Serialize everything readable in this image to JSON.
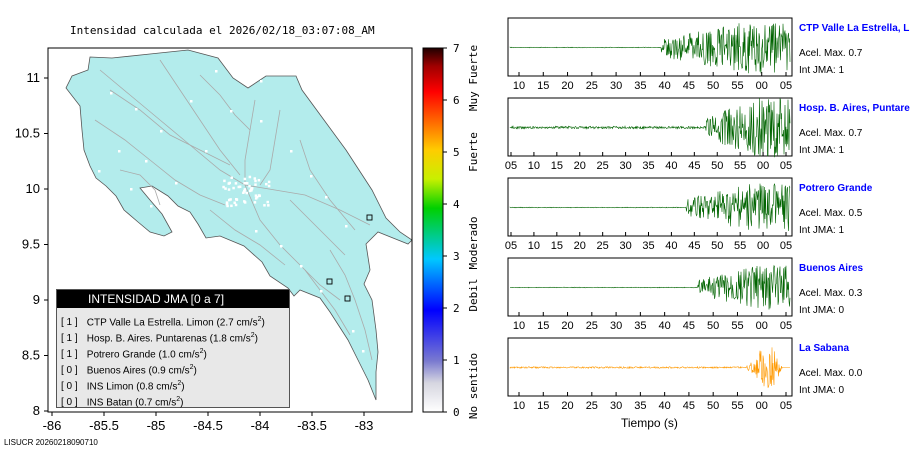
{
  "title": "Intensidad calculada el 2026/02/18_03:07:08_AM",
  "map": {
    "x_ticks": [
      "-86",
      "-85.5",
      "-85",
      "-84.5",
      "-84",
      "-83.5",
      "-83"
    ],
    "y_ticks": [
      "11",
      "10.5",
      "10",
      "9.5",
      "9",
      "8.5",
      "8"
    ],
    "land_color": "#b3ecec",
    "roads_color": "#aaaaaa"
  },
  "colorbar": {
    "ticks": [
      "0",
      "1",
      "2",
      "3",
      "4",
      "5",
      "6",
      "7"
    ],
    "labels": [
      "No sentido",
      "Debil",
      "Moderado",
      "Fuerte",
      "Muy Fuerte"
    ]
  },
  "legend": {
    "header": "INTENSIDAD JMA [0 a 7]",
    "rows": [
      {
        "level": "[ 1 ]",
        "text": "CTP Valle La Estrella. Limon (2.7 cm/s",
        "sup": "2",
        "tail": ")"
      },
      {
        "level": "[ 1 ]",
        "text": "Hosp. B. Aires. Puntarenas (1.8 cm/s",
        "sup": "2",
        "tail": ")"
      },
      {
        "level": "[ 1 ]",
        "text": "Potrero Grande (1.0 cm/s",
        "sup": "2",
        "tail": ")"
      },
      {
        "level": "[ 0 ]",
        "text": "Buenos Aires (0.9 cm/s",
        "sup": "2",
        "tail": ")"
      },
      {
        "level": "[ 0 ]",
        "text": "INS Limon (0.8 cm/s",
        "sup": "2",
        "tail": ")"
      },
      {
        "level": "[ 0 ]",
        "text": "INS Batan (0.7 cm/s",
        "sup": "2",
        "tail": ")"
      }
    ]
  },
  "footer": "LISUCR 20260218090710",
  "x_axis_label": "Tiempo (s)",
  "stations": [
    {
      "name": "CTP Valle La Estrella, L",
      "acel": "Acel. Max. 0.7",
      "jma": "Int JMA: 1",
      "color": "#006400",
      "ticks": [
        "10",
        "15",
        "20",
        "25",
        "30",
        "35",
        "40",
        "45",
        "50",
        "55",
        "00",
        "05"
      ]
    },
    {
      "name": "Hosp. B. Aires, Puntare",
      "acel": "Acel. Max. 0.7",
      "jma": "Int JMA: 1",
      "color": "#006400",
      "ticks": [
        "05",
        "10",
        "15",
        "20",
        "25",
        "30",
        "35",
        "40",
        "45",
        "50",
        "55",
        "00",
        "05"
      ]
    },
    {
      "name": "Potrero Grande",
      "acel": "Acel. Max. 0.5",
      "jma": "Int JMA: 1",
      "color": "#006400",
      "ticks": [
        "05",
        "10",
        "15",
        "20",
        "25",
        "30",
        "35",
        "40",
        "45",
        "50",
        "55",
        "00",
        "05"
      ]
    },
    {
      "name": "Buenos Aires",
      "acel": "Acel. Max. 0.3",
      "jma": "Int JMA: 0",
      "color": "#006400",
      "ticks": [
        "10",
        "15",
        "20",
        "25",
        "30",
        "35",
        "40",
        "45",
        "50",
        "55",
        "00",
        "05"
      ]
    },
    {
      "name": "La Sabana",
      "acel": "Acel. Max. 0.0",
      "jma": "Int JMA: 0",
      "color": "#ff9900",
      "ticks": [
        "10",
        "15",
        "20",
        "25",
        "30",
        "35",
        "40",
        "45",
        "50",
        "55",
        "00",
        "05"
      ]
    }
  ]
}
